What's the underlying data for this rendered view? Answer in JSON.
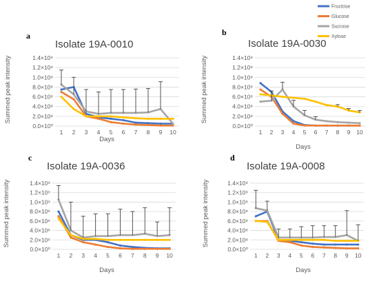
{
  "legend": {
    "items": [
      {
        "name": "Fructose",
        "color": "#4472C4"
      },
      {
        "name": "Glucose",
        "color": "#ED7D31"
      },
      {
        "name": "Sucrose",
        "color": "#A5A5A5"
      },
      {
        "name": "Xylose",
        "color": "#FFC000"
      }
    ]
  },
  "chart_data": [
    {
      "type": "line",
      "letter": "a",
      "title": "Isolate 19A-0010",
      "xlabel": "Days",
      "ylabel": "Summed peak intensity",
      "categories": [
        "1",
        "2",
        "3",
        "4",
        "5",
        "6",
        "7",
        "8",
        "9",
        "10"
      ],
      "ylim": [
        0,
        1400000000.0
      ],
      "yticks": [
        "0.0×10⁰",
        "2.0×10⁸",
        "4.0×10⁸",
        "6.0×10⁸",
        "8.0×10⁸",
        "1.0×10⁹",
        "1.2×10⁹",
        "1.4×10⁹"
      ],
      "grid": true,
      "series": [
        {
          "name": "Fructose",
          "values": [
            750000000.0,
            800000000.0,
            250000000.0,
            180000000.0,
            150000000.0,
            120000000.0,
            70000000.0,
            60000000.0,
            50000000.0,
            50000000.0
          ],
          "errors": [
            0,
            0,
            0,
            0,
            0,
            0,
            0,
            0,
            0,
            0
          ]
        },
        {
          "name": "Glucose",
          "values": [
            700000000.0,
            550000000.0,
            200000000.0,
            150000000.0,
            80000000.0,
            50000000.0,
            30000000.0,
            20000000.0,
            10000000.0,
            10000000.0
          ],
          "errors": [
            0,
            0,
            0,
            0,
            0,
            0,
            0,
            0,
            0,
            0
          ]
        },
        {
          "name": "Sucrose",
          "values": [
            850000000.0,
            650000000.0,
            300000000.0,
            250000000.0,
            270000000.0,
            270000000.0,
            270000000.0,
            280000000.0,
            350000000.0,
            50000000.0
          ],
          "errors": [
            300000000.0,
            350000000.0,
            450000000.0,
            450000000.0,
            480000000.0,
            480000000.0,
            490000000.0,
            490000000.0,
            560000000.0,
            0
          ]
        },
        {
          "name": "Xylose",
          "values": [
            600000000.0,
            350000000.0,
            200000000.0,
            200000000.0,
            200000000.0,
            180000000.0,
            160000000.0,
            150000000.0,
            150000000.0,
            150000000.0
          ],
          "errors": [
            0,
            0,
            0,
            0,
            0,
            0,
            0,
            0,
            0,
            0
          ]
        }
      ]
    },
    {
      "type": "line",
      "letter": "b",
      "title": "Isolate 19A-0030",
      "xlabel": "Days",
      "ylabel": "Summed peak intensity",
      "categories": [
        "1",
        "2",
        "3",
        "4",
        "5",
        "6",
        "7",
        "8",
        "9",
        "10"
      ],
      "ylim": [
        0,
        1400000000.0
      ],
      "yticks": [
        "0.0×10⁰",
        "2.0×10⁸",
        "4.0×10⁸",
        "6.0×10⁸",
        "8.0×10⁸",
        "1.0×10⁹",
        "1.2×10⁹",
        "1.4×10⁹"
      ],
      "grid": true,
      "series": [
        {
          "name": "Fructose",
          "values": [
            880000000.0,
            700000000.0,
            300000000.0,
            100000000.0,
            20000000.0,
            10000000.0,
            10000000.0,
            10000000.0,
            10000000.0,
            10000000.0
          ],
          "errors": [
            0,
            0,
            0,
            0,
            0,
            0,
            0,
            0,
            0,
            0
          ]
        },
        {
          "name": "Glucose",
          "values": [
            750000000.0,
            600000000.0,
            250000000.0,
            50000000.0,
            10000000.0,
            10000000.0,
            10000000.0,
            10000000.0,
            10000000.0,
            10000000.0
          ],
          "errors": [
            0,
            0,
            0,
            0,
            0,
            0,
            0,
            0,
            0,
            0
          ]
        },
        {
          "name": "Sucrose",
          "values": [
            500000000.0,
            520000000.0,
            750000000.0,
            400000000.0,
            220000000.0,
            130000000.0,
            100000000.0,
            80000000.0,
            70000000.0,
            60000000.0
          ],
          "errors": [
            0,
            200000000.0,
            150000000.0,
            130000000.0,
            100000000.0,
            60000000.0,
            0,
            0,
            0,
            0
          ]
        },
        {
          "name": "Xylose",
          "values": [
            650000000.0,
            630000000.0,
            600000000.0,
            580000000.0,
            560000000.0,
            500000000.0,
            430000000.0,
            400000000.0,
            320000000.0,
            280000000.0
          ],
          "errors": [
            0,
            0,
            0,
            0,
            0,
            0,
            0,
            40000000.0,
            40000000.0,
            40000000.0
          ]
        }
      ]
    },
    {
      "type": "line",
      "letter": "c",
      "title": "Isolate 19A-0036",
      "xlabel": "Days",
      "ylabel": "Summed peak intensity",
      "categories": [
        "1",
        "2",
        "3",
        "4",
        "5",
        "6",
        "7",
        "8",
        "9",
        "10"
      ],
      "ylim": [
        0,
        1400000000.0
      ],
      "yticks": [
        "0.0×10⁰",
        "2.0×10⁸",
        "4.0×10⁸",
        "6.0×10⁸",
        "8.0×10⁸",
        "1.0×10⁹",
        "1.2×10⁹",
        "1.4×10⁹"
      ],
      "grid": true,
      "series": [
        {
          "name": "Fructose",
          "values": [
            800000000.0,
            300000000.0,
            200000000.0,
            200000000.0,
            150000000.0,
            80000000.0,
            50000000.0,
            30000000.0,
            20000000.0,
            20000000.0
          ],
          "errors": [
            0,
            0,
            0,
            0,
            0,
            0,
            0,
            0,
            0,
            0
          ]
        },
        {
          "name": "Glucose",
          "values": [
            700000000.0,
            250000000.0,
            150000000.0,
            100000000.0,
            50000000.0,
            20000000.0,
            10000000.0,
            10000000.0,
            10000000.0,
            10000000.0
          ],
          "errors": [
            0,
            0,
            0,
            0,
            0,
            0,
            0,
            0,
            0,
            0
          ]
        },
        {
          "name": "Sucrose",
          "values": [
            1050000000.0,
            400000000.0,
            250000000.0,
            280000000.0,
            280000000.0,
            300000000.0,
            300000000.0,
            330000000.0,
            280000000.0,
            300000000.0
          ],
          "errors": [
            300000000.0,
            600000000.0,
            450000000.0,
            470000000.0,
            470000000.0,
            550000000.0,
            500000000.0,
            550000000.0,
            300000000.0,
            580000000.0
          ]
        },
        {
          "name": "Xylose",
          "values": [
            650000000.0,
            300000000.0,
            220000000.0,
            220000000.0,
            200000000.0,
            200000000.0,
            200000000.0,
            200000000.0,
            200000000.0,
            200000000.0
          ],
          "errors": [
            0,
            0,
            0,
            0,
            0,
            0,
            0,
            0,
            0,
            0
          ]
        }
      ]
    },
    {
      "type": "line",
      "letter": "d",
      "title": "Isolate 19A-0008",
      "xlabel": "Days",
      "ylabel": "Summed peak intensity",
      "categories": [
        "1",
        "2",
        "3",
        "4",
        "5",
        "6",
        "7",
        "8",
        "9",
        "10"
      ],
      "ylim": [
        0,
        1400000000.0
      ],
      "yticks": [
        "0.0×10⁰",
        "2.0×10⁸",
        "4.0×10⁸",
        "6.0×10⁸",
        "8.0×10⁸",
        "1.0×10⁹",
        "1.2×10⁹",
        "1.4×10⁹"
      ],
      "grid": true,
      "series": [
        {
          "name": "Fructose",
          "values": [
            700000000.0,
            800000000.0,
            200000000.0,
            180000000.0,
            150000000.0,
            120000000.0,
            100000000.0,
            100000000.0,
            100000000.0,
            100000000.0
          ],
          "errors": [
            0,
            0,
            0,
            0,
            0,
            0,
            0,
            0,
            0,
            0
          ]
        },
        {
          "name": "Glucose",
          "values": [
            600000000.0,
            600000000.0,
            180000000.0,
            150000000.0,
            80000000.0,
            50000000.0,
            40000000.0,
            30000000.0,
            20000000.0,
            20000000.0
          ],
          "errors": [
            0,
            0,
            0,
            0,
            0,
            0,
            0,
            0,
            0,
            0
          ]
        },
        {
          "name": "Sucrose",
          "values": [
            870000000.0,
            820000000.0,
            250000000.0,
            250000000.0,
            250000000.0,
            250000000.0,
            260000000.0,
            260000000.0,
            300000000.0,
            180000000.0
          ],
          "errors": [
            380000000.0,
            200000000.0,
            180000000.0,
            180000000.0,
            230000000.0,
            250000000.0,
            240000000.0,
            240000000.0,
            520000000.0,
            340000000.0
          ]
        },
        {
          "name": "Xylose",
          "values": [
            600000000.0,
            580000000.0,
            200000000.0,
            200000000.0,
            200000000.0,
            200000000.0,
            200000000.0,
            180000000.0,
            180000000.0,
            180000000.0
          ],
          "errors": [
            0,
            0,
            0,
            0,
            0,
            0,
            0,
            0,
            0,
            0
          ]
        }
      ]
    }
  ]
}
